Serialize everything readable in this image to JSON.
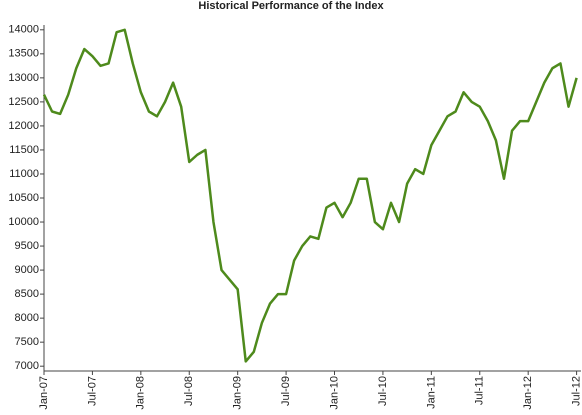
{
  "chart_data": {
    "type": "line",
    "title": "Historical Performance of the Index",
    "categories": [
      "Jan-07",
      null,
      null,
      null,
      null,
      null,
      "Jul-07",
      null,
      null,
      null,
      null,
      null,
      "Jan-08",
      null,
      null,
      null,
      null,
      null,
      "Jul-08",
      null,
      null,
      null,
      null,
      null,
      "Jan-09",
      null,
      null,
      null,
      null,
      null,
      "Jul-09",
      null,
      null,
      null,
      null,
      null,
      "Jan-10",
      null,
      null,
      null,
      null,
      null,
      "Jul-10",
      null,
      null,
      null,
      null,
      null,
      "Jan-11",
      null,
      null,
      null,
      null,
      null,
      "Jul-11",
      null,
      null,
      null,
      null,
      null,
      "Jan-12",
      null,
      null,
      null,
      null,
      null,
      "Jul-12"
    ],
    "values": [
      12650,
      12300,
      12250,
      12650,
      13200,
      13600,
      13450,
      13250,
      13300,
      13950,
      14000,
      13300,
      12700,
      12300,
      12200,
      12500,
      12900,
      12400,
      11250,
      11400,
      11500,
      10000,
      9000,
      8800,
      8600,
      7100,
      7300,
      7900,
      8300,
      8500,
      8500,
      9200,
      9500,
      9700,
      9650,
      10300,
      10400,
      10100,
      10400,
      10900,
      10900,
      10000,
      9850,
      10400,
      10000,
      10800,
      11100,
      11000,
      11600,
      11900,
      12200,
      12300,
      12700,
      12500,
      12400,
      12100,
      11700,
      10900,
      11900,
      12100,
      12100,
      12500,
      12900,
      13200,
      13300,
      12400,
      13000
    ],
    "color": "#4e8a1c",
    "ylim": [
      6900,
      14100
    ],
    "yticks": [
      7000,
      7500,
      8000,
      8500,
      9000,
      9500,
      10000,
      10500,
      11000,
      11500,
      12000,
      12500,
      13000,
      13500,
      14000
    ],
    "grid": false
  }
}
